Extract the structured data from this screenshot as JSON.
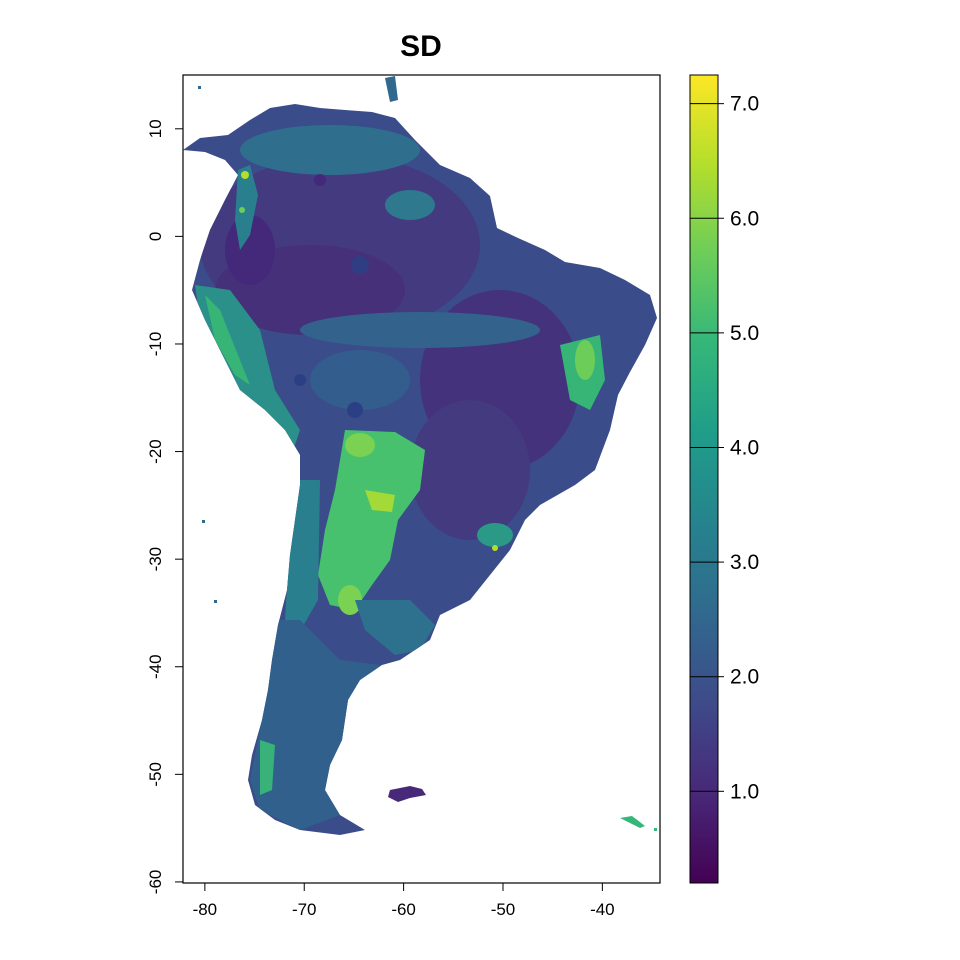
{
  "title": "SD",
  "map": {
    "x_axis": {
      "range": [
        -82.2,
        -34.2
      ],
      "ticks": [
        -80,
        -70,
        -60,
        -50,
        -40
      ],
      "labels": [
        "-80",
        "-70",
        "-60",
        "-50",
        "-40"
      ]
    },
    "y_axis": {
      "range": [
        -60.1,
        15.0
      ],
      "ticks": [
        10,
        0,
        -10,
        -20,
        -30,
        -40,
        -50,
        -60
      ],
      "labels": [
        "10",
        "0",
        "-10",
        "-20",
        "-30",
        "-40",
        "-50",
        "-60"
      ]
    },
    "colormap": "viridis"
  },
  "legend": {
    "min": 0.2,
    "max": 7.25,
    "ticks": [
      1.0,
      2.0,
      3.0,
      4.0,
      5.0,
      6.0,
      7.0
    ],
    "labels": [
      "1.0",
      "2.0",
      "3.0",
      "4.0",
      "5.0",
      "6.0",
      "7.0"
    ],
    "stops": [
      "#440154",
      "#482878",
      "#3e4a89",
      "#31688e",
      "#26828e",
      "#1f9e89",
      "#35b779",
      "#6dcd59",
      "#b4de2c",
      "#fde725"
    ]
  }
}
